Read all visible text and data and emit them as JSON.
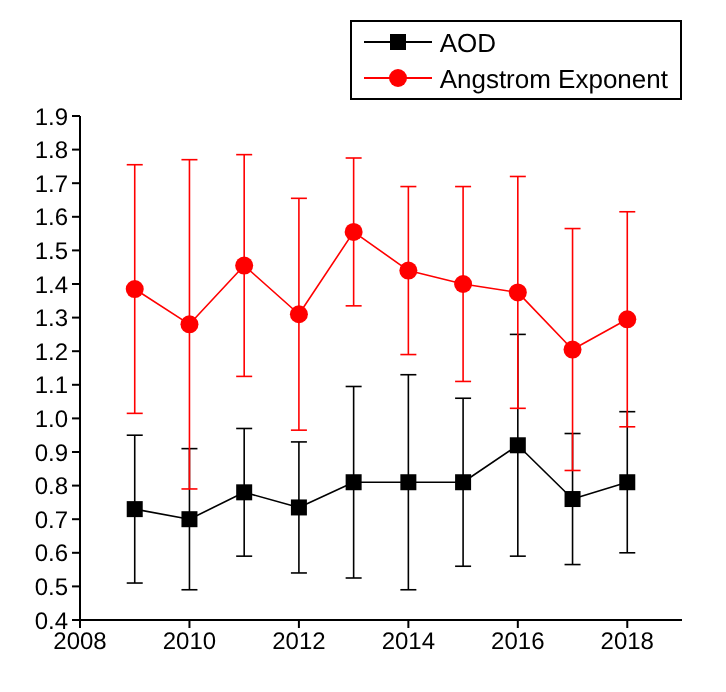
{
  "chart_data": {
    "type": "line",
    "x": [
      2009,
      2010,
      2011,
      2012,
      2013,
      2014,
      2015,
      2016,
      2017,
      2018
    ],
    "series": [
      {
        "name": "AOD",
        "color": "#000000",
        "marker": "square",
        "values": [
          0.73,
          0.7,
          0.78,
          0.735,
          0.81,
          0.81,
          0.81,
          0.92,
          0.76,
          0.81
        ],
        "errors": [
          0.22,
          0.21,
          0.19,
          0.195,
          0.285,
          0.32,
          0.25,
          0.33,
          0.195,
          0.21
        ]
      },
      {
        "name": "Angstrom Exponent",
        "color": "#ff0000",
        "marker": "circle",
        "values": [
          1.385,
          1.28,
          1.455,
          1.31,
          1.555,
          1.44,
          1.4,
          1.375,
          1.205,
          1.295
        ],
        "errors": [
          0.37,
          0.49,
          0.33,
          0.345,
          0.22,
          0.25,
          0.29,
          0.345,
          0.36,
          0.32
        ]
      }
    ],
    "xlim": [
      2008,
      2019
    ],
    "xticks": [
      2008,
      2010,
      2012,
      2014,
      2016,
      2018
    ],
    "ylim": [
      0.4,
      1.9
    ],
    "yticks": [
      0.4,
      0.5,
      0.6,
      0.7,
      0.8,
      0.9,
      {
        "value": 1.0,
        "label": "1.0"
      },
      1.1,
      1.2,
      1.3,
      1.4,
      1.5,
      1.6,
      1.7,
      1.8,
      1.9
    ],
    "grid": false,
    "legend": "top right"
  }
}
